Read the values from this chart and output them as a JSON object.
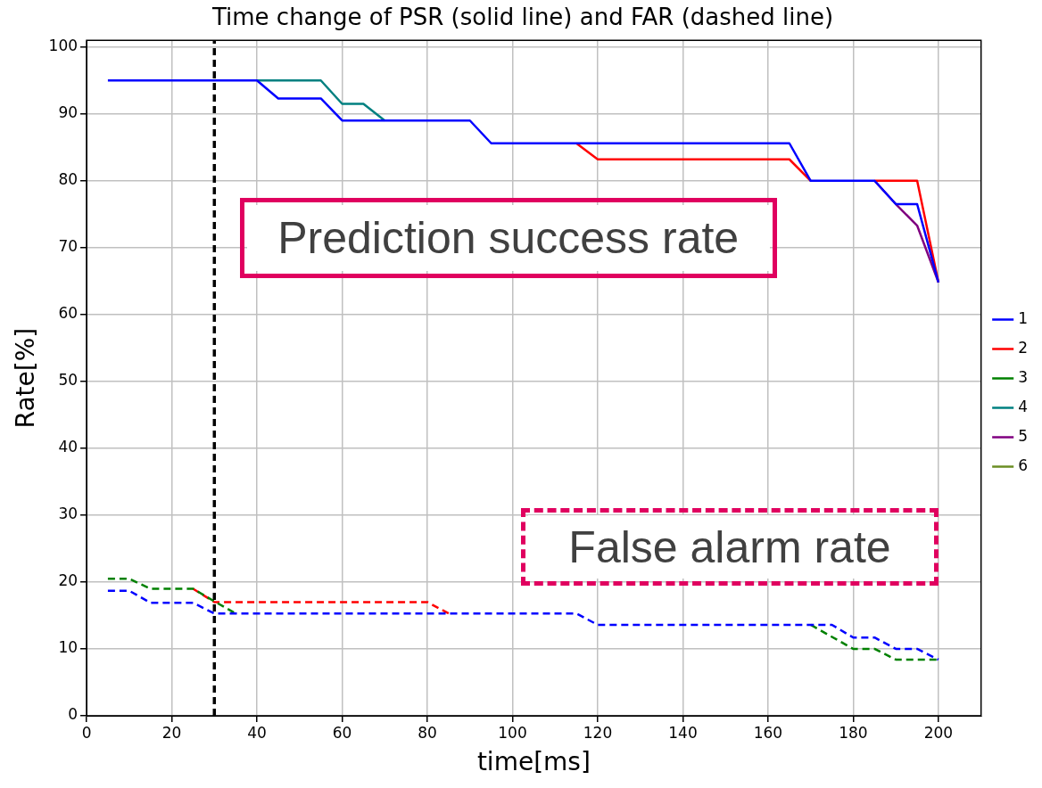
{
  "chart_data": {
    "type": "line",
    "title": "Time change of PSR (solid line) and FAR (dashed line)",
    "xlabel": "time[ms]",
    "ylabel": "Rate[%]",
    "x": [
      5,
      10,
      15,
      20,
      25,
      30,
      35,
      40,
      45,
      50,
      55,
      60,
      65,
      70,
      75,
      80,
      85,
      90,
      95,
      100,
      105,
      110,
      115,
      120,
      125,
      130,
      135,
      140,
      145,
      150,
      155,
      160,
      165,
      170,
      175,
      180,
      185,
      190,
      195,
      200
    ],
    "xlim": [
      0,
      210
    ],
    "xticks": [
      0,
      20,
      40,
      60,
      80,
      100,
      120,
      140,
      160,
      180,
      200
    ],
    "ylim": [
      0,
      101
    ],
    "yticks": [
      0,
      10,
      20,
      30,
      40,
      50,
      60,
      70,
      80,
      90,
      100
    ],
    "grid": true,
    "legend": "right",
    "marker": "none",
    "series": [
      {
        "name": "1",
        "color": "#0000ff",
        "line_style": "solid",
        "values": [
          95,
          95,
          95,
          95,
          95,
          95,
          95,
          95,
          92.3,
          92.3,
          92.3,
          89,
          89,
          89,
          89,
          89,
          89,
          89,
          85.6,
          85.6,
          85.6,
          85.6,
          85.6,
          85.6,
          85.6,
          85.6,
          85.6,
          85.6,
          85.6,
          85.6,
          85.6,
          85.6,
          85.6,
          80,
          80,
          80,
          80,
          76.5,
          76.5,
          64.8
        ]
      },
      {
        "name": "2",
        "color": "#ff0000",
        "line_style": "solid",
        "values": [
          null,
          null,
          null,
          null,
          null,
          null,
          null,
          null,
          null,
          null,
          null,
          null,
          null,
          null,
          null,
          null,
          null,
          null,
          null,
          null,
          null,
          null,
          85.6,
          83.2,
          83.2,
          83.2,
          83.2,
          83.2,
          83.2,
          83.2,
          83.2,
          83.2,
          83.2,
          80,
          null,
          null,
          80,
          80,
          80,
          64.8
        ]
      },
      {
        "name": "3",
        "color": "#008000",
        "line_style": "solid",
        "values": [
          null,
          null,
          null,
          null,
          null,
          null,
          null,
          null,
          null,
          null,
          null,
          null,
          null,
          null,
          null,
          null,
          null,
          null,
          null,
          null,
          null,
          null,
          null,
          null,
          null,
          null,
          null,
          null,
          null,
          null,
          null,
          null,
          null,
          null,
          null,
          null,
          null,
          null,
          null,
          null
        ]
      },
      {
        "name": "4",
        "color": "#008080",
        "line_style": "solid",
        "values": [
          null,
          null,
          null,
          null,
          null,
          null,
          null,
          95,
          95,
          95,
          95,
          91.5,
          91.5,
          89,
          null,
          null,
          null,
          null,
          null,
          null,
          null,
          null,
          null,
          null,
          null,
          null,
          null,
          null,
          null,
          null,
          null,
          null,
          null,
          null,
          null,
          null,
          null,
          null,
          null,
          null
        ]
      },
      {
        "name": "5",
        "color": "#800080",
        "line_style": "solid",
        "values": [
          null,
          null,
          null,
          null,
          null,
          null,
          null,
          null,
          null,
          null,
          null,
          null,
          null,
          null,
          null,
          null,
          null,
          null,
          null,
          null,
          null,
          null,
          null,
          null,
          null,
          null,
          null,
          null,
          null,
          null,
          null,
          null,
          null,
          null,
          null,
          null,
          80,
          76.5,
          73.3,
          64.8
        ]
      },
      {
        "name": "6",
        "color": "#6b8e23",
        "line_style": "solid",
        "values": [
          null,
          null,
          null,
          null,
          null,
          null,
          null,
          null,
          null,
          null,
          null,
          null,
          null,
          null,
          null,
          null,
          null,
          null,
          null,
          null,
          null,
          null,
          null,
          null,
          null,
          null,
          null,
          null,
          null,
          null,
          null,
          null,
          null,
          null,
          null,
          null,
          null,
          null,
          null,
          null
        ]
      },
      {
        "color": "#0000ff",
        "line_style": "dashed",
        "values": [
          18.7,
          18.7,
          16.9,
          16.9,
          16.9,
          15.3,
          15.3,
          15.3,
          15.3,
          15.3,
          15.3,
          15.3,
          15.3,
          15.3,
          15.3,
          15.3,
          15.3,
          15.3,
          15.3,
          15.3,
          15.3,
          15.3,
          15.3,
          13.6,
          13.6,
          13.6,
          13.6,
          13.6,
          13.6,
          13.6,
          13.6,
          13.6,
          13.6,
          13.6,
          13.6,
          11.7,
          11.7,
          10,
          10,
          8.4
        ]
      },
      {
        "color": "#008000",
        "line_style": "dashed",
        "values": [
          20.5,
          20.5,
          19,
          19,
          19,
          17.1,
          15.3,
          null,
          null,
          null,
          null,
          null,
          null,
          null,
          null,
          null,
          null,
          null,
          null,
          null,
          null,
          null,
          null,
          null,
          null,
          null,
          null,
          null,
          null,
          null,
          null,
          null,
          null,
          13.6,
          11.8,
          10,
          10,
          8.4,
          8.4,
          8.4
        ]
      },
      {
        "color": "#ff0000",
        "line_style": "dashed",
        "values": [
          null,
          null,
          null,
          null,
          19,
          17,
          17,
          17,
          17,
          17,
          17,
          17,
          17,
          17,
          17,
          17,
          15.3,
          null,
          null,
          null,
          null,
          null,
          null,
          null,
          null,
          null,
          null,
          null,
          null,
          null,
          null,
          null,
          null,
          null,
          null,
          null,
          null,
          null,
          null,
          null
        ]
      }
    ],
    "ref_lines": [
      {
        "axis": "x",
        "value": 30,
        "color": "#000000",
        "line_style": "dashed"
      }
    ],
    "annotations": [
      "Prediction success rate",
      "False alarm rate"
    ]
  }
}
